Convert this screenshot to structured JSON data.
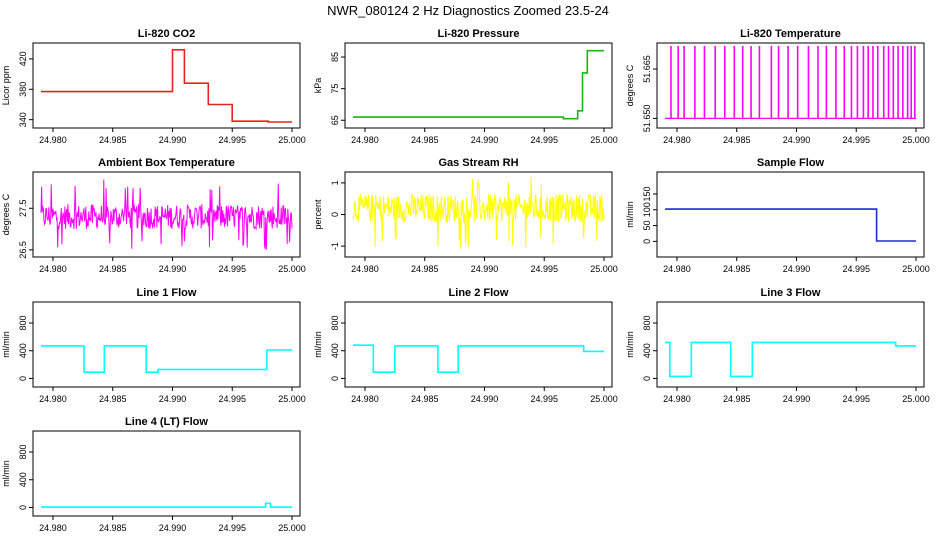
{
  "page_title": "NWR_080124  2 Hz Diagnostics Zoomed 23.5-24",
  "colors": {
    "red": "#e8231e",
    "green": "#16b816",
    "magenta": "#ff00ff",
    "yellow": "#ffff00",
    "blue": "#1c2bd6",
    "cyan": "#00ffff"
  },
  "chart_data": [
    {
      "type": "line",
      "title": "Li-820 CO2",
      "ylabel": "Licor ppm",
      "color_key": "red",
      "xlim": [
        24.979,
        25.0
      ],
      "ylim": [
        333,
        437
      ],
      "xticks": [
        "24.980",
        "24.985",
        "24.990",
        "24.995",
        "25.000"
      ],
      "yticks": [
        340,
        380,
        420
      ],
      "series": [
        {
          "style": "steps",
          "x": [
            24.979,
            24.99,
            24.991,
            24.993,
            24.995,
            24.9978,
            24.998
          ],
          "y": [
            377,
            432,
            388,
            360,
            338,
            338,
            337
          ]
        }
      ]
    },
    {
      "type": "line",
      "title": "Li-820 Pressure",
      "ylabel": "kPa",
      "color_key": "green",
      "xlim": [
        24.979,
        25.0
      ],
      "ylim": [
        63.5,
        88.5
      ],
      "xticks": [
        "24.980",
        "24.985",
        "24.990",
        "24.995",
        "25.000"
      ],
      "yticks": [
        65,
        75,
        85
      ],
      "series": [
        {
          "style": "steps",
          "x": [
            24.979,
            24.9966,
            24.9978,
            24.9982,
            24.9986,
            25.0
          ],
          "y": [
            66.0,
            65.5,
            68.0,
            80.0,
            87.0,
            87.0
          ]
        }
      ]
    },
    {
      "type": "line",
      "title": "Li-820 Temperature",
      "ylabel": "degrees C",
      "color_key": "magenta",
      "xlim": [
        24.979,
        25.0
      ],
      "ylim": [
        51.648,
        51.672
      ],
      "xticks": [
        "24.980",
        "24.985",
        "24.990",
        "24.995",
        "25.000"
      ],
      "yticks": [
        "51.650",
        "51.665"
      ],
      "series": [
        {
          "style": "flicker",
          "low": 51.65,
          "high": 51.672,
          "x": [
            24.9795,
            24.9801,
            24.9806,
            24.9815,
            24.9823,
            24.9832,
            24.984,
            24.9848,
            24.9855,
            24.9862,
            24.9869,
            24.9879,
            24.9885,
            24.9893,
            24.9901,
            24.991,
            24.9918,
            24.9925,
            24.9933,
            24.994,
            24.9946,
            24.9951,
            24.9956,
            24.996,
            24.9964,
            24.9968,
            24.9973,
            24.9977,
            24.9981,
            24.9985,
            24.9989,
            24.9993,
            24.9996,
            24.9999
          ]
        }
      ]
    },
    {
      "type": "line",
      "title": "Ambient Box Temperature",
      "ylabel": "degrees C",
      "color_key": "magenta",
      "xlim": [
        24.979,
        25.0
      ],
      "ylim": [
        26.4,
        28.3
      ],
      "xticks": [
        "24.980",
        "24.985",
        "24.990",
        "24.995",
        "25.000"
      ],
      "yticks": [
        26.5,
        27.5
      ],
      "series": [
        {
          "style": "noise",
          "x_range": [
            24.979,
            25.0
          ],
          "mean": 27.3,
          "amplitude": 0.3,
          "spike_low": 26.5,
          "spike_high": 28.2
        }
      ]
    },
    {
      "type": "line",
      "title": "Gas Stream RH",
      "ylabel": "percent",
      "color_key": "yellow",
      "xlim": [
        24.979,
        25.0
      ],
      "ylim": [
        -1.25,
        1.25
      ],
      "xticks": [
        "24.980",
        "24.985",
        "24.990",
        "24.995",
        "25.000"
      ],
      "yticks": [
        -1.0,
        0.0,
        1.0
      ],
      "series": [
        {
          "style": "noise",
          "x_range": [
            24.979,
            25.0
          ],
          "mean": 0.2,
          "amplitude": 0.45,
          "spike_low": -1.1,
          "spike_high": 1.2
        }
      ]
    },
    {
      "type": "line",
      "title": "Sample Flow",
      "ylabel": "ml/min",
      "color_key": "blue",
      "xlim": [
        24.979,
        25.0
      ],
      "ylim": [
        -40,
        210
      ],
      "xticks": [
        "24.980",
        "24.985",
        "24.990",
        "24.995",
        "25.000"
      ],
      "yticks": [
        0,
        50,
        100,
        150
      ],
      "series": [
        {
          "style": "steps",
          "x": [
            24.979,
            24.9967,
            25.0
          ],
          "y": [
            102,
            1,
            1
          ]
        }
      ]
    },
    {
      "type": "line",
      "title": "Line 1 Flow",
      "ylabel": "ml/min",
      "color_key": "cyan",
      "xlim": [
        24.979,
        25.0
      ],
      "ylim": [
        -80,
        1060
      ],
      "xticks": [
        "24.980",
        "24.985",
        "24.990",
        "24.995",
        "25.000"
      ],
      "yticks": [
        0,
        400,
        800
      ],
      "series": [
        {
          "style": "steps",
          "x": [
            24.979,
            24.9826,
            24.9843,
            24.9878,
            24.9888,
            24.9979,
            25.0
          ],
          "y": [
            470,
            90,
            470,
            90,
            130,
            410,
            410
          ]
        }
      ]
    },
    {
      "type": "line",
      "title": "Line 2 Flow",
      "ylabel": "ml/min",
      "color_key": "cyan",
      "xlim": [
        24.979,
        25.0
      ],
      "ylim": [
        -80,
        1060
      ],
      "xticks": [
        "24.980",
        "24.985",
        "24.990",
        "24.995",
        "25.000"
      ],
      "yticks": [
        0,
        400,
        800
      ],
      "series": [
        {
          "style": "steps",
          "x": [
            24.979,
            24.9807,
            24.9825,
            24.9861,
            24.9878,
            24.9983,
            25.0
          ],
          "y": [
            480,
            90,
            470,
            90,
            470,
            390,
            390
          ]
        }
      ]
    },
    {
      "type": "line",
      "title": "Line 3 Flow",
      "ylabel": "ml/min",
      "color_key": "cyan",
      "xlim": [
        24.979,
        25.0
      ],
      "ylim": [
        -80,
        1060
      ],
      "xticks": [
        "24.980",
        "24.985",
        "24.990",
        "24.995",
        "25.000"
      ],
      "yticks": [
        0,
        400,
        800
      ],
      "series": [
        {
          "style": "steps",
          "x": [
            24.979,
            24.9794,
            24.9812,
            24.9845,
            24.9863,
            24.9983,
            25.0
          ],
          "y": [
            520,
            30,
            520,
            30,
            520,
            470,
            470
          ]
        }
      ]
    },
    {
      "type": "line",
      "title": "Line 4 (LT) Flow",
      "ylabel": "ml/min",
      "color_key": "cyan",
      "xlim": [
        24.979,
        25.0
      ],
      "ylim": [
        -80,
        1060
      ],
      "xticks": [
        "24.980",
        "24.985",
        "24.990",
        "24.995",
        "25.000"
      ],
      "yticks": [
        0,
        400,
        800
      ],
      "series": [
        {
          "style": "steps",
          "x": [
            24.979,
            24.9978,
            24.9982,
            25.0
          ],
          "y": [
            5,
            60,
            5,
            5
          ]
        }
      ]
    }
  ]
}
